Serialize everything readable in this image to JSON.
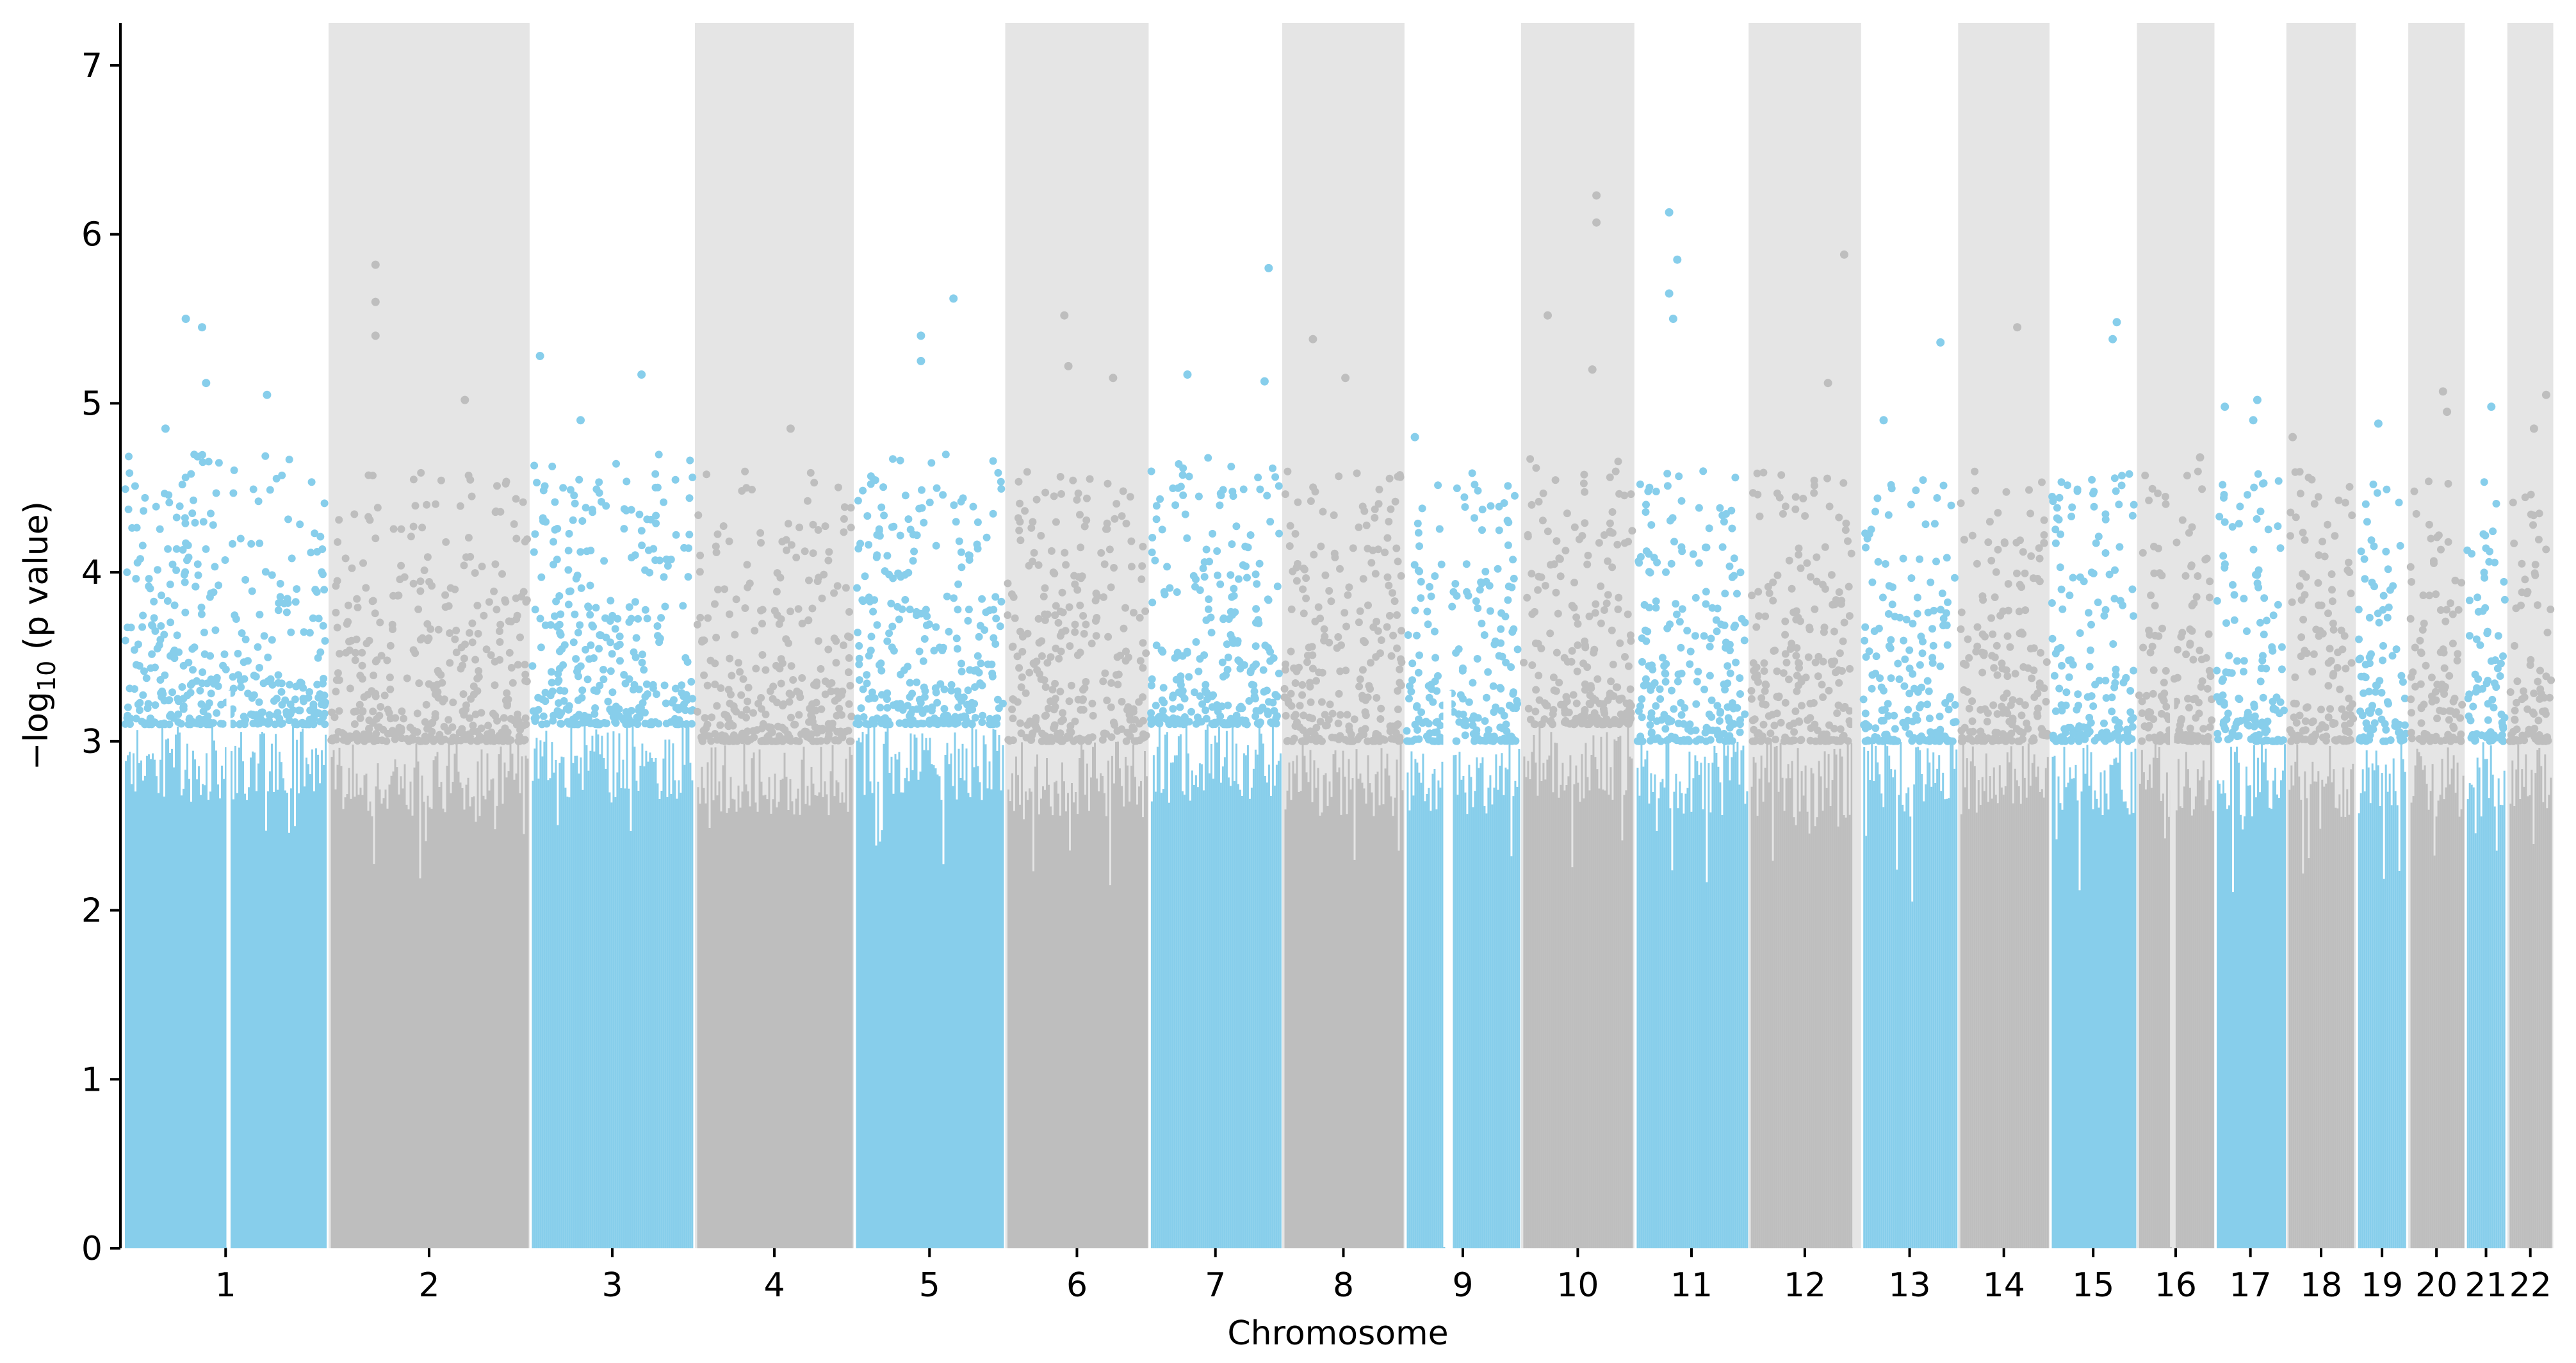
{
  "chart_data": {
    "type": "scatter",
    "subtype": "manhattan",
    "title": "",
    "xlabel": "Chromosome",
    "ylabel_prefix": "−log",
    "ylabel_subscript": "10",
    "ylabel_suffix": " (p value)",
    "ylim": [
      0,
      7.25
    ],
    "yticks": [
      0,
      1,
      2,
      3,
      4,
      5,
      6,
      7
    ],
    "grid": false,
    "legend": "none",
    "colors": {
      "odd": "#87CEEB",
      "even": "#BEBEBE",
      "band": "#E5E5E5",
      "axis": "#000000",
      "background": "#FFFFFF"
    },
    "chromosomes": [
      {
        "label": "1",
        "length": 248,
        "base_max": 3.1
      },
      {
        "label": "2",
        "length": 242,
        "base_max": 3.0
      },
      {
        "label": "3",
        "length": 198,
        "base_max": 3.1
      },
      {
        "label": "4",
        "length": 190,
        "base_max": 3.0
      },
      {
        "label": "5",
        "length": 181,
        "base_max": 3.1
      },
      {
        "label": "6",
        "length": 171,
        "base_max": 3.0
      },
      {
        "label": "7",
        "length": 159,
        "base_max": 3.1
      },
      {
        "label": "8",
        "length": 145,
        "base_max": 3.0
      },
      {
        "label": "9",
        "length": 138,
        "base_max": 3.0
      },
      {
        "label": "10",
        "length": 134,
        "base_max": 3.1
      },
      {
        "label": "11",
        "length": 135,
        "base_max": 3.0
      },
      {
        "label": "12",
        "length": 133,
        "base_max": 3.0
      },
      {
        "label": "13",
        "length": 114,
        "base_max": 3.0
      },
      {
        "label": "14",
        "length": 107,
        "base_max": 3.0
      },
      {
        "label": "15",
        "length": 102,
        "base_max": 3.0
      },
      {
        "label": "16",
        "length": 90,
        "base_max": 3.0
      },
      {
        "label": "17",
        "length": 83,
        "base_max": 3.0
      },
      {
        "label": "18",
        "length": 80,
        "base_max": 3.0
      },
      {
        "label": "19",
        "length": 59,
        "base_max": 3.0
      },
      {
        "label": "20",
        "length": 64,
        "base_max": 3.0
      },
      {
        "label": "21",
        "length": 47,
        "base_max": 3.0
      },
      {
        "label": "22",
        "length": 51,
        "base_max": 3.0
      }
    ],
    "gaps": [
      {
        "chrom": "1",
        "pos": 125,
        "width": 5
      },
      {
        "chrom": "9",
        "pos": 45,
        "width": 10
      },
      {
        "chrom": "12",
        "pos": 125,
        "width": 8
      },
      {
        "chrom": "16",
        "pos": 38,
        "width": 5
      }
    ],
    "top_hits": [
      {
        "chrom": "1",
        "pos": 75,
        "y": 5.5
      },
      {
        "chrom": "1",
        "pos": 95,
        "y": 5.45
      },
      {
        "chrom": "1",
        "pos": 100,
        "y": 5.12
      },
      {
        "chrom": "1",
        "pos": 175,
        "y": 5.05
      },
      {
        "chrom": "1",
        "pos": 50,
        "y": 4.85
      },
      {
        "chrom": "2",
        "pos": 55,
        "y": 5.82
      },
      {
        "chrom": "2",
        "pos": 55,
        "y": 5.6
      },
      {
        "chrom": "2",
        "pos": 55,
        "y": 5.4
      },
      {
        "chrom": "2",
        "pos": 165,
        "y": 5.02
      },
      {
        "chrom": "3",
        "pos": 10,
        "y": 5.28
      },
      {
        "chrom": "3",
        "pos": 135,
        "y": 5.17
      },
      {
        "chrom": "3",
        "pos": 60,
        "y": 4.9
      },
      {
        "chrom": "4",
        "pos": 115,
        "y": 4.85
      },
      {
        "chrom": "5",
        "pos": 80,
        "y": 5.4
      },
      {
        "chrom": "5",
        "pos": 80,
        "y": 5.25
      },
      {
        "chrom": "5",
        "pos": 120,
        "y": 5.62
      },
      {
        "chrom": "6",
        "pos": 70,
        "y": 5.52
      },
      {
        "chrom": "6",
        "pos": 75,
        "y": 5.22
      },
      {
        "chrom": "6",
        "pos": 130,
        "y": 5.15
      },
      {
        "chrom": "7",
        "pos": 45,
        "y": 5.17
      },
      {
        "chrom": "7",
        "pos": 145,
        "y": 5.8
      },
      {
        "chrom": "7",
        "pos": 140,
        "y": 5.13
      },
      {
        "chrom": "8",
        "pos": 35,
        "y": 5.38
      },
      {
        "chrom": "8",
        "pos": 75,
        "y": 5.15
      },
      {
        "chrom": "9",
        "pos": 10,
        "y": 4.8
      },
      {
        "chrom": "10",
        "pos": 30,
        "y": 5.52
      },
      {
        "chrom": "10",
        "pos": 90,
        "y": 6.23
      },
      {
        "chrom": "10",
        "pos": 90,
        "y": 6.07
      },
      {
        "chrom": "10",
        "pos": 85,
        "y": 5.2
      },
      {
        "chrom": "11",
        "pos": 40,
        "y": 6.13
      },
      {
        "chrom": "11",
        "pos": 50,
        "y": 5.85
      },
      {
        "chrom": "11",
        "pos": 40,
        "y": 5.65
      },
      {
        "chrom": "11",
        "pos": 45,
        "y": 5.5
      },
      {
        "chrom": "12",
        "pos": 115,
        "y": 5.88
      },
      {
        "chrom": "12",
        "pos": 95,
        "y": 5.12
      },
      {
        "chrom": "13",
        "pos": 95,
        "y": 5.36
      },
      {
        "chrom": "13",
        "pos": 25,
        "y": 4.9
      },
      {
        "chrom": "14",
        "pos": 70,
        "y": 5.45
      },
      {
        "chrom": "15",
        "pos": 80,
        "y": 5.48
      },
      {
        "chrom": "15",
        "pos": 75,
        "y": 5.38
      },
      {
        "chrom": "16",
        "pos": 75,
        "y": 4.68
      },
      {
        "chrom": "17",
        "pos": 10,
        "y": 4.98
      },
      {
        "chrom": "17",
        "pos": 50,
        "y": 5.02
      },
      {
        "chrom": "17",
        "pos": 45,
        "y": 4.9
      },
      {
        "chrom": "18",
        "pos": 5,
        "y": 4.8
      },
      {
        "chrom": "19",
        "pos": 25,
        "y": 4.88
      },
      {
        "chrom": "20",
        "pos": 40,
        "y": 5.07
      },
      {
        "chrom": "20",
        "pos": 45,
        "y": 4.95
      },
      {
        "chrom": "21",
        "pos": 30,
        "y": 4.98
      },
      {
        "chrom": "22",
        "pos": 45,
        "y": 5.05
      },
      {
        "chrom": "22",
        "pos": 30,
        "y": 4.85
      }
    ]
  }
}
